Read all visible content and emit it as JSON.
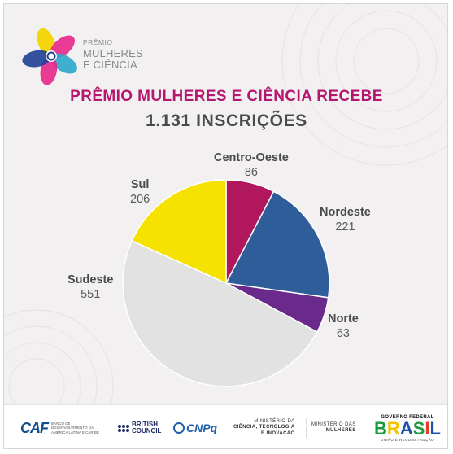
{
  "brand": {
    "logo_line1": "PRÊMIO",
    "logo_line2": "MULHERES",
    "logo_line3": "E CIÊNCIA"
  },
  "headline": {
    "line1": "PRÊMIO MULHERES E CIÊNCIA RECEBE",
    "line2": "1.131 INSCRIÇÕES"
  },
  "chart_data": {
    "type": "pie",
    "title": "",
    "start_angle_deg": 0,
    "direction": "clockwise",
    "slices": [
      {
        "name": "Centro-Oeste",
        "value": 86,
        "color": "#b0175c"
      },
      {
        "name": "Nordeste",
        "value": 221,
        "color": "#2f5d9a"
      },
      {
        "name": "Norte",
        "value": 63,
        "color": "#6a2a8c"
      },
      {
        "name": "Sudeste",
        "value": 551,
        "color": "#e2e2e2"
      },
      {
        "name": "Sul",
        "value": 206,
        "color": "#f5e200"
      }
    ],
    "legend": "none",
    "labels": "outside"
  },
  "footer": {
    "caf_logo": "CAF",
    "caf_text": "BANCO DE DESENVOLVIMENTO DA AMÉRICA LATINA E CARIBE",
    "british_council_line1": "BRITISH",
    "british_council_line2": "COUNCIL",
    "cnpq": "CNPq",
    "mcti_line1": "MINISTÉRIO DA",
    "mcti_line2": "CIÊNCIA, TECNOLOGIA",
    "mcti_line3": "E INOVAÇÃO",
    "mulheres_line1": "MINISTÉRIO DAS",
    "mulheres_line2": "MULHERES",
    "gov_top": "GOVERNO FEDERAL",
    "gov_brasil": "BRASIL",
    "gov_bottom": "UNIÃO E RECONSTRUÇÃO"
  }
}
